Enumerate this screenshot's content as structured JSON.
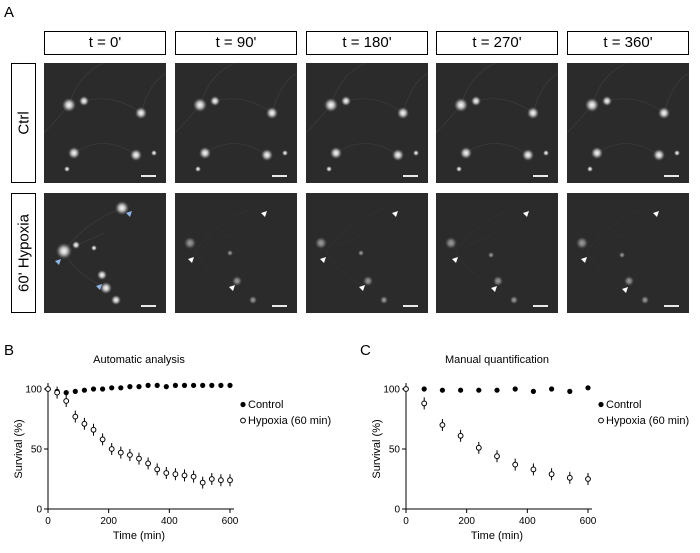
{
  "panels": {
    "a": "A",
    "b": "B",
    "c": "C"
  },
  "timepoints": [
    "t = 0'",
    "t = 90'",
    "t = 180'",
    "t = 270'",
    "t = 360'"
  ],
  "rows": [
    "Ctrl",
    "60' Hypoxia"
  ],
  "chart_data": [
    {
      "type": "scatter",
      "title": "Automatic analysis",
      "xlabel": "Time (min)",
      "ylabel": "Survival (%)",
      "xlim": [
        0,
        600
      ],
      "ylim": [
        0,
        100
      ],
      "xticks": [
        0,
        200,
        400,
        600
      ],
      "yticks": [
        0,
        50,
        100
      ],
      "legend": "right",
      "series": [
        {
          "name": "Control",
          "marker": "filled",
          "x": [
            0,
            30,
            60,
            90,
            120,
            150,
            180,
            210,
            240,
            270,
            300,
            330,
            360,
            390,
            420,
            450,
            480,
            510,
            540,
            570,
            600
          ],
          "y": [
            100,
            98,
            97,
            98,
            99,
            100,
            100,
            101,
            101,
            102,
            102,
            103,
            103,
            102,
            103,
            103,
            103,
            103,
            103,
            103,
            103
          ]
        },
        {
          "name": "Hypoxia (60 min)",
          "marker": "open",
          "x": [
            0,
            30,
            60,
            90,
            120,
            150,
            180,
            210,
            240,
            270,
            300,
            330,
            360,
            390,
            420,
            450,
            480,
            510,
            540,
            570,
            600
          ],
          "y": [
            100,
            97,
            90,
            77,
            71,
            66,
            58,
            50,
            47,
            45,
            42,
            38,
            33,
            30,
            29,
            28,
            27,
            22,
            25,
            24,
            24
          ]
        }
      ]
    },
    {
      "type": "scatter",
      "title": "Manual quantification",
      "xlabel": "Time (min)",
      "ylabel": "Survival (%)",
      "xlim": [
        0,
        600
      ],
      "ylim": [
        0,
        100
      ],
      "xticks": [
        0,
        200,
        400,
        600
      ],
      "yticks": [
        0,
        50,
        100
      ],
      "legend": "right",
      "series": [
        {
          "name": "Control",
          "marker": "filled",
          "x": [
            0,
            60,
            120,
            180,
            240,
            300,
            360,
            420,
            480,
            540,
            600
          ],
          "y": [
            100,
            100,
            99,
            99,
            99,
            99,
            100,
            98,
            100,
            98,
            101
          ]
        },
        {
          "name": "Hypoxia (60 min)",
          "marker": "open",
          "x": [
            0,
            60,
            120,
            180,
            240,
            300,
            360,
            420,
            480,
            540,
            600
          ],
          "y": [
            100,
            88,
            70,
            61,
            51,
            44,
            37,
            33,
            29,
            26,
            25
          ]
        }
      ]
    }
  ]
}
